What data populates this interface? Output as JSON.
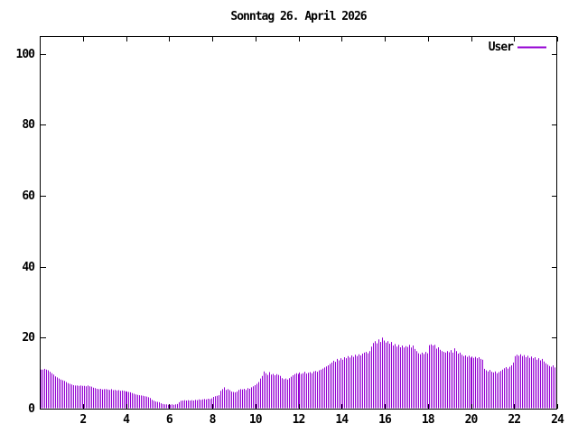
{
  "header": {
    "title": "Sonntag 26. April 2026"
  },
  "legend": {
    "label": "User",
    "line_color": "#9400d3",
    "position": "top-right-inside"
  },
  "colors": {
    "bar": "#9400d3",
    "axis": "#000000",
    "background": "#ffffff",
    "text": "#000000"
  },
  "chart_data": {
    "type": "bar",
    "style": "impulses",
    "title": "Sonntag 26. April 2026",
    "xlabel": "",
    "ylabel": "",
    "x_unit": "hour_of_day",
    "interval_minutes": 5,
    "xlim": [
      0,
      24
    ],
    "ylim": [
      0,
      105
    ],
    "x_ticks": [
      2,
      4,
      6,
      8,
      10,
      12,
      14,
      16,
      18,
      20,
      22,
      24
    ],
    "y_ticks": [
      0,
      20,
      40,
      60,
      80,
      100
    ],
    "grid": false,
    "frame": "full-box-mirrored-ticks",
    "series": [
      {
        "name": "User",
        "color": "#9400d3",
        "values": [
          11.0,
          11.0,
          11.2,
          11.0,
          10.8,
          10.4,
          10.0,
          9.6,
          9.1,
          8.8,
          8.5,
          8.2,
          8.0,
          7.8,
          7.5,
          7.2,
          7.0,
          6.8,
          6.6,
          6.5,
          6.5,
          6.4,
          6.5,
          6.4,
          6.4,
          6.3,
          6.5,
          6.3,
          6.2,
          5.9,
          5.8,
          5.6,
          5.5,
          5.6,
          5.4,
          5.5,
          5.5,
          5.4,
          5.3,
          5.5,
          5.2,
          5.3,
          5.1,
          5.2,
          5.0,
          5.1,
          5.0,
          4.9,
          4.8,
          4.7,
          4.6,
          4.4,
          4.2,
          4.0,
          3.9,
          3.8,
          3.7,
          3.6,
          3.5,
          3.4,
          3.2,
          3.0,
          2.5,
          2.2,
          2.0,
          1.9,
          1.8,
          1.5,
          1.3,
          1.2,
          1.2,
          1.1,
          1.1,
          1.2,
          1.1,
          1.2,
          1.3,
          1.8,
          2.2,
          2.3,
          2.4,
          2.3,
          2.4,
          2.3,
          2.4,
          2.3,
          2.5,
          2.4,
          2.6,
          2.5,
          2.6,
          2.7,
          2.6,
          2.8,
          2.7,
          2.9,
          3.3,
          3.5,
          3.6,
          3.8,
          5.0,
          5.5,
          6.0,
          5.3,
          5.5,
          5.2,
          4.8,
          4.7,
          4.6,
          4.8,
          5.3,
          5.5,
          5.4,
          5.6,
          5.3,
          5.8,
          5.6,
          6.0,
          6.3,
          6.6,
          7.0,
          7.5,
          8.5,
          9.2,
          10.5,
          10.0,
          9.5,
          10.3,
          9.6,
          9.8,
          9.4,
          9.7,
          9.5,
          9.2,
          8.6,
          8.3,
          8.5,
          8.2,
          8.6,
          9.0,
          9.4,
          9.7,
          10.0,
          9.8,
          10.2,
          9.8,
          10.0,
          10.4,
          9.9,
          10.1,
          10.3,
          10.0,
          10.5,
          10.6,
          10.4,
          10.8,
          11.0,
          11.3,
          11.6,
          11.9,
          12.2,
          12.6,
          13.0,
          13.5,
          13.2,
          14.0,
          13.6,
          14.2,
          13.8,
          14.5,
          14.2,
          14.8,
          14.4,
          15.0,
          14.6,
          15.2,
          14.8,
          15.3,
          15.0,
          15.5,
          15.8,
          16.0,
          15.6,
          16.2,
          17.5,
          18.5,
          19.0,
          18.4,
          19.5,
          18.8,
          20.0,
          19.2,
          18.6,
          19.0,
          18.3,
          18.8,
          17.8,
          18.2,
          17.5,
          18.0,
          17.3,
          17.8,
          17.2,
          17.6,
          17.4,
          18.0,
          17.2,
          17.8,
          16.8,
          16.2,
          15.6,
          15.3,
          15.8,
          15.4,
          16.0,
          15.6,
          17.9,
          18.1,
          17.8,
          18.0,
          16.9,
          17.3,
          16.6,
          16.2,
          16.0,
          15.8,
          16.2,
          15.9,
          16.5,
          15.8,
          17.0,
          16.2,
          15.5,
          15.8,
          15.2,
          14.8,
          15.0,
          14.6,
          14.9,
          14.4,
          14.7,
          14.3,
          14.6,
          14.2,
          14.5,
          14.0,
          13.8,
          11.2,
          10.8,
          10.5,
          10.9,
          10.4,
          10.2,
          10.5,
          10.0,
          10.3,
          10.6,
          11.0,
          11.4,
          11.7,
          11.3,
          11.8,
          12.2,
          13.0,
          14.8,
          15.2,
          14.9,
          15.3,
          14.8,
          15.1,
          14.5,
          14.9,
          14.3,
          14.7,
          14.2,
          14.5,
          13.8,
          14.2,
          13.6,
          14.0,
          13.3,
          12.8,
          12.4,
          12.0,
          11.8,
          12.2,
          11.6,
          12.0
        ]
      }
    ]
  }
}
